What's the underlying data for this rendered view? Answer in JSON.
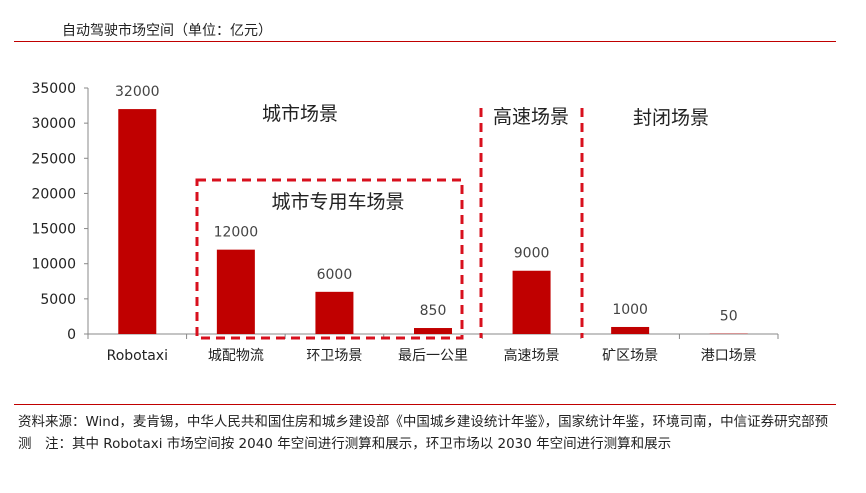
{
  "header": {
    "title": "自动驾驶市场空间（单位：亿元）"
  },
  "footer": {
    "note": "资料来源：Wind，麦肯锡，中华人民共和国住房和城乡建设部《中国城乡建设统计年鉴》，国家统计年鉴，环境司南，中信证券研究部预测　注：其中 Robotaxi 市场空间按 2040 年空间进行测算和展示，环卫市场以 2030 年空间进行测算和展示"
  },
  "chart_data": {
    "type": "bar",
    "title": "自动驾驶市场空间（单位：亿元）",
    "xlabel": "",
    "ylabel": "",
    "categories": [
      "Robotaxi",
      "城配物流",
      "环卫场景",
      "最后一公里",
      "高速场景",
      "矿区场景",
      "港口场景"
    ],
    "values": [
      32000,
      12000,
      6000,
      850,
      9000,
      1000,
      50
    ],
    "data_labels": [
      "32000",
      "12000",
      "6000",
      "850",
      "9000",
      "1000",
      "50"
    ],
    "ylim": [
      0,
      35000
    ],
    "yticks": [
      0,
      5000,
      10000,
      15000,
      20000,
      25000,
      30000,
      35000
    ],
    "ytick_labels": [
      "0",
      "5000",
      "10000",
      "15000",
      "20000",
      "25000",
      "30000",
      "35000"
    ],
    "grid": false,
    "bar_color": "#c00000",
    "annotations": [
      {
        "text": "城市场景"
      },
      {
        "text": "城市专用车场景"
      },
      {
        "text": "高速场景"
      },
      {
        "text": "封闭场景"
      }
    ]
  }
}
